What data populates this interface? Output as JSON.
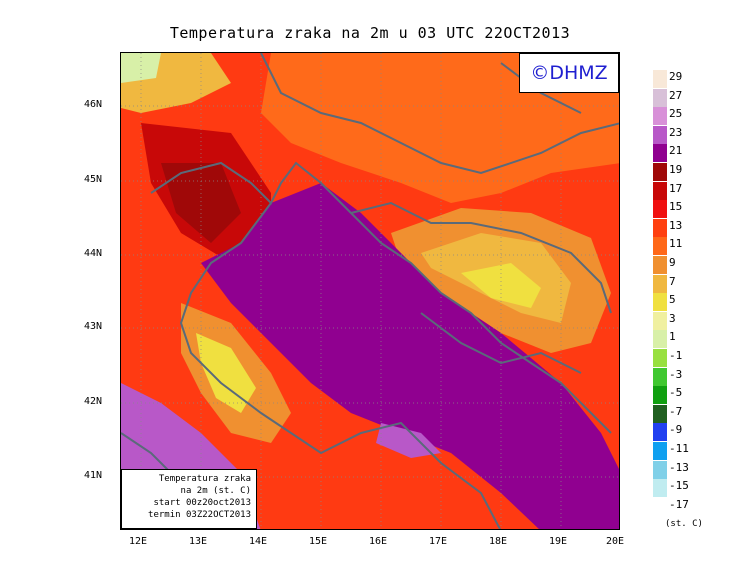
{
  "title": "Temperatura zraka na 2m u 03 UTC 22OCT2013",
  "logo": "©DHMZ",
  "infobox": {
    "line1": "Temperatura zraka",
    "line2": "na 2m (st. C)",
    "line3": "start 00z20oct2013",
    "line4": "termin 03Z22OCT2013"
  },
  "latitude_labels": [
    "46N",
    "45N",
    "44N",
    "43N",
    "42N",
    "41N"
  ],
  "longitude_labels": [
    "12E",
    "13E",
    "14E",
    "15E",
    "16E",
    "17E",
    "18E",
    "19E",
    "20E"
  ],
  "colorbar": {
    "unit": "(st. C)",
    "labels": [
      "29",
      "27",
      "25",
      "23",
      "21",
      "19",
      "17",
      "15",
      "13",
      "11",
      "9",
      "7",
      "5",
      "3",
      "1",
      "-1",
      "-3",
      "-5",
      "-7",
      "-9",
      "-11",
      "-13",
      "-15",
      "-17"
    ],
    "colors": [
      "#f8e8d8",
      "#d8c0d8",
      "#d890d8",
      "#b858c8",
      "#900090",
      "#a00808",
      "#c80808",
      "#f01010",
      "#ff4010",
      "#ff6818",
      "#f09030",
      "#f0b840",
      "#f0e040",
      "#f0f0a0",
      "#d8f0a8",
      "#98e040",
      "#40c830",
      "#10a010",
      "#206020",
      "#2040f0",
      "#10a0f0",
      "#80d0e8",
      "#c0ecf0",
      "#ffffff"
    ]
  }
}
